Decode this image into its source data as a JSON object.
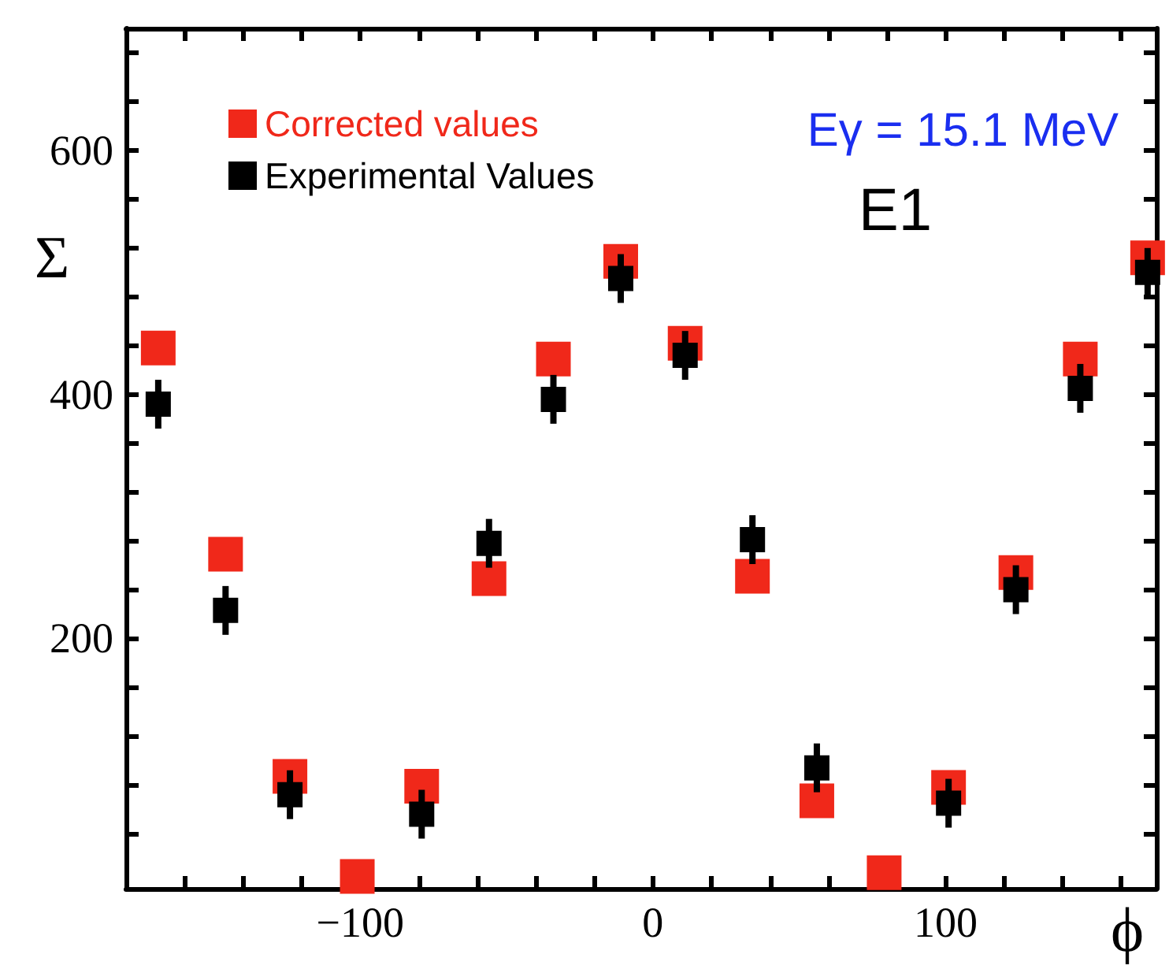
{
  "chart_data": {
    "type": "scatter",
    "xlabel": "ϕ",
    "ylabel": "Σ",
    "annotations": [
      "Eγ = 15.1 MeV",
      "E1"
    ],
    "x": [
      -169,
      -146,
      -124,
      -101,
      -79,
      -56,
      -34,
      -11,
      11,
      34,
      56,
      79,
      101,
      124,
      146,
      169
    ],
    "series": [
      {
        "name": "Corrected values",
        "color": "#f0281a",
        "values": [
          438,
          269,
          87,
          5,
          79,
          249,
          429,
          509,
          442,
          251,
          67,
          8,
          78,
          254,
          429,
          512
        ]
      },
      {
        "name": "Experimental Values",
        "color": "#000000",
        "values": [
          392,
          223,
          72,
          null,
          56,
          278,
          396,
          495,
          432,
          281,
          94,
          null,
          65,
          240,
          405,
          500
        ],
        "errors": [
          20,
          20,
          20,
          null,
          20,
          20,
          20,
          20,
          20,
          20,
          20,
          null,
          20,
          20,
          20,
          20
        ]
      }
    ],
    "xlim": [
      -180,
      172
    ],
    "xticks": [
      {
        "value": -160,
        "label": null
      },
      {
        "value": -140,
        "label": null
      },
      {
        "value": -120,
        "label": null
      },
      {
        "value": -100,
        "label": "−100"
      },
      {
        "value": -80,
        "label": null
      },
      {
        "value": -60,
        "label": null
      },
      {
        "value": -40,
        "label": null
      },
      {
        "value": -20,
        "label": null
      },
      0,
      {
        "value": 20,
        "label": null
      },
      {
        "value": 40,
        "label": null
      },
      {
        "value": 60,
        "label": null
      },
      {
        "value": 80,
        "label": null
      },
      100,
      {
        "value": 120,
        "label": null
      },
      {
        "value": 140,
        "label": null
      },
      {
        "value": 160,
        "label": null
      }
    ],
    "ylim": [
      -5,
      700
    ],
    "yticks": [
      {
        "value": 40,
        "label": null
      },
      {
        "value": 80,
        "label": null
      },
      {
        "value": 120,
        "label": null
      },
      {
        "value": 160,
        "label": null
      },
      200,
      {
        "value": 240,
        "label": null
      },
      {
        "value": 280,
        "label": null
      },
      {
        "value": 320,
        "label": null
      },
      {
        "value": 360,
        "label": null
      },
      400,
      {
        "value": 440,
        "label": null
      },
      {
        "value": 480,
        "label": null
      },
      {
        "value": 520,
        "label": null
      },
      {
        "value": 560,
        "label": null
      },
      600,
      {
        "value": 640,
        "label": null
      },
      {
        "value": 680,
        "label": null
      }
    ],
    "grid": false,
    "legend": "top left",
    "marker": "square"
  }
}
